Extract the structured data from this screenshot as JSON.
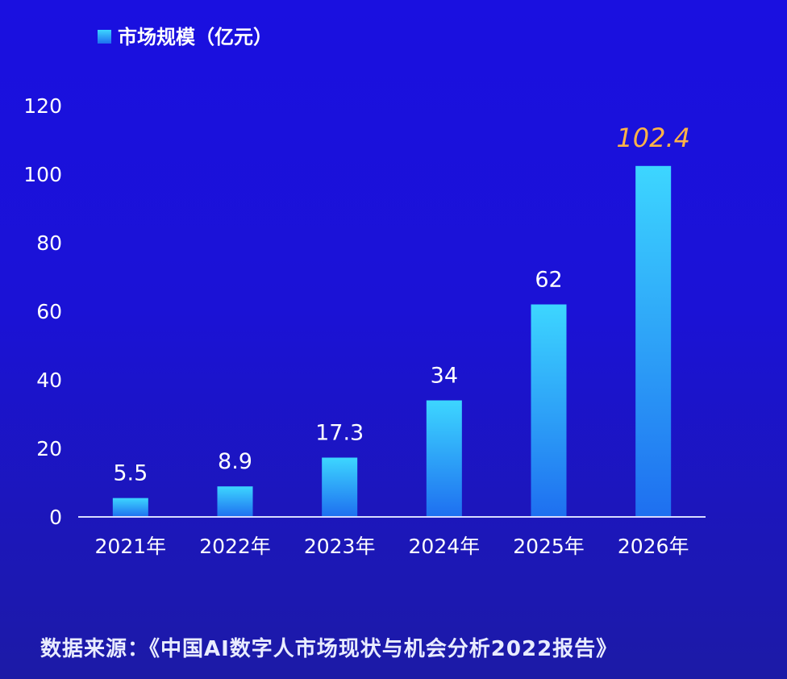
{
  "colors": {
    "background_top": "#1a10e0",
    "background_bottom": "#1c1aa6",
    "bar_top": "#3dd6ff",
    "bar_bottom": "#1e6ff0",
    "legend_swatch": "#37c8ff",
    "axis_text": "#ffffff",
    "value_label": "#ffffff",
    "highlight_label": "#ffb347",
    "axis_line": "#d8dcff"
  },
  "chart_data": {
    "type": "bar",
    "categories": [
      "2021年",
      "2022年",
      "2023年",
      "2024年",
      "2025年",
      "2026年"
    ],
    "series": [
      {
        "name": "市场规模（亿元）",
        "values": [
          5.5,
          8.9,
          17.3,
          34,
          62,
          102.4
        ]
      }
    ],
    "value_labels": [
      "5.5",
      "8.9",
      "17.3",
      "34",
      "62",
      "102.4"
    ],
    "ylim": [
      0,
      120
    ],
    "yticks": [
      0,
      20,
      40,
      60,
      80,
      100,
      120
    ],
    "grid": false,
    "legend_position": "top-left",
    "highlighted_category": "2026年"
  },
  "source_note": "数据来源：《中国AI数字人市场现状与机会分析2022报告》"
}
